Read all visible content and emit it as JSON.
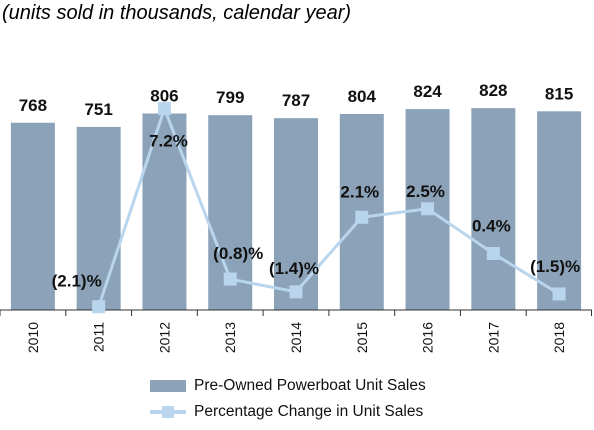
{
  "subtitle": "(units sold in thousands, calendar year)",
  "colors": {
    "bar": "#8ba2b8",
    "line": "#b9d5ee",
    "axis": "#333333"
  },
  "chart_data": {
    "type": "bar",
    "categories": [
      "2010",
      "2011",
      "2012",
      "2013",
      "2014",
      "2015",
      "2016",
      "2017",
      "2018"
    ],
    "series": [
      {
        "name": "Pre-Owned Powerboat Unit Sales",
        "type": "bar",
        "values": [
          768,
          751,
          806,
          799,
          787,
          804,
          824,
          828,
          815
        ],
        "labels": [
          "768",
          "751",
          "806",
          "799",
          "787",
          "804",
          "824",
          "828",
          "815"
        ]
      },
      {
        "name": "Percentage Change in Unit Sales",
        "type": "line",
        "values": [
          null,
          -2.1,
          7.2,
          -0.8,
          -1.4,
          2.1,
          2.5,
          0.4,
          -1.5
        ],
        "labels": [
          "",
          "(2.1)%",
          "7.2%",
          "(0.8)%",
          "(1.4)%",
          "2.1%",
          "2.5%",
          "0.4%",
          "(1.5)%"
        ]
      }
    ],
    "legend": "bottom"
  }
}
